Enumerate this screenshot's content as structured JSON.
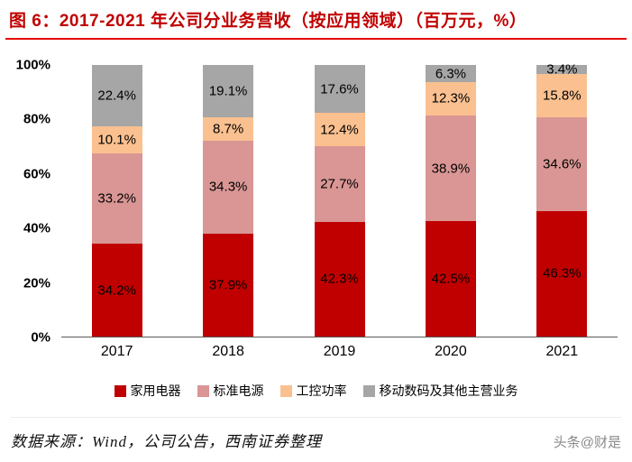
{
  "title": "图 6：2017-2021 年公司分业务营收（按应用领域）（百万元，%）",
  "chart_data": {
    "type": "bar",
    "subtype": "stacked-100-percent",
    "title": "2017-2021 年公司分业务营收（按应用领域）（百万元，%）",
    "categories": [
      "2017",
      "2018",
      "2019",
      "2020",
      "2021"
    ],
    "series": [
      {
        "name": "家用电器",
        "color": "#c00000",
        "values": [
          34.2,
          37.9,
          42.3,
          42.5,
          46.3
        ]
      },
      {
        "name": "标准电源",
        "color": "#d99694",
        "values": [
          33.2,
          34.3,
          27.7,
          38.9,
          34.6
        ]
      },
      {
        "name": "工控功率",
        "color": "#fac090",
        "values": [
          10.1,
          8.7,
          12.4,
          12.3,
          15.8
        ]
      },
      {
        "name": "移动数码及其他主营业务",
        "color": "#a6a6a6",
        "values": [
          22.4,
          19.1,
          17.6,
          6.3,
          3.4
        ]
      }
    ],
    "y_ticks": [
      "100%",
      "80%",
      "60%",
      "40%",
      "20%",
      "0%"
    ],
    "ylim": [
      0,
      100
    ],
    "unit": "%",
    "grid": false,
    "legend_position": "bottom",
    "data_labels": true
  },
  "footer": {
    "source": "数据来源：Wind，公司公告，西南证券整理",
    "watermark": "头条@财是"
  }
}
